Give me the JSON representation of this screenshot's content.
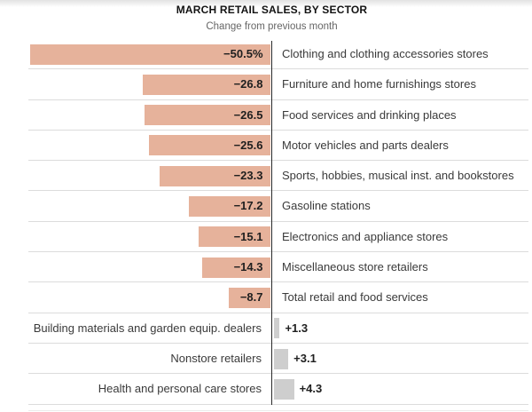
{
  "header": {
    "title": "MARCH RETAIL SALES, BY SECTOR",
    "subtitle": "Change from previous month"
  },
  "chart_data": {
    "type": "bar",
    "orientation": "horizontal",
    "title": "MARCH RETAIL SALES, BY SECTOR",
    "subtitle": "Change from previous month",
    "unit": "percent change vs previous month",
    "baseline": 0,
    "xlim": [
      -52,
      6
    ],
    "grid": false,
    "legend": "none",
    "categories": [
      "Clothing and clothing accessories stores",
      "Furniture and home furnishings stores",
      "Food services and drinking places",
      "Motor vehicles and parts dealers",
      "Sports, hobbies, musical inst. and bookstores",
      "Gasoline stations",
      "Electronics and appliance stores",
      "Miscellaneous store retailers",
      "Total retail and food services",
      "Building materials and garden equip. dealers",
      "Nonstore retailers",
      "Health and personal care stores"
    ],
    "values": [
      -50.5,
      -26.8,
      -26.5,
      -25.6,
      -23.3,
      -17.2,
      -15.1,
      -14.3,
      -8.7,
      1.3,
      3.1,
      4.3
    ],
    "value_labels": [
      "−50.5%",
      "−26.8",
      "−26.5",
      "−25.6",
      "−23.3",
      "−17.2",
      "−15.1",
      "−14.3",
      "−8.7",
      "+1.3",
      "+3.1",
      "+4.3"
    ],
    "colors": {
      "negative_bar": "#e6b29b",
      "positive_bar": "#cecece",
      "axis": "#2a2a2a",
      "separator": "#dcdcdc",
      "value_text": "#1f1f1f",
      "category_text": "#3a3a3a",
      "title_text": "#121212",
      "subtitle_text": "#666666"
    }
  }
}
